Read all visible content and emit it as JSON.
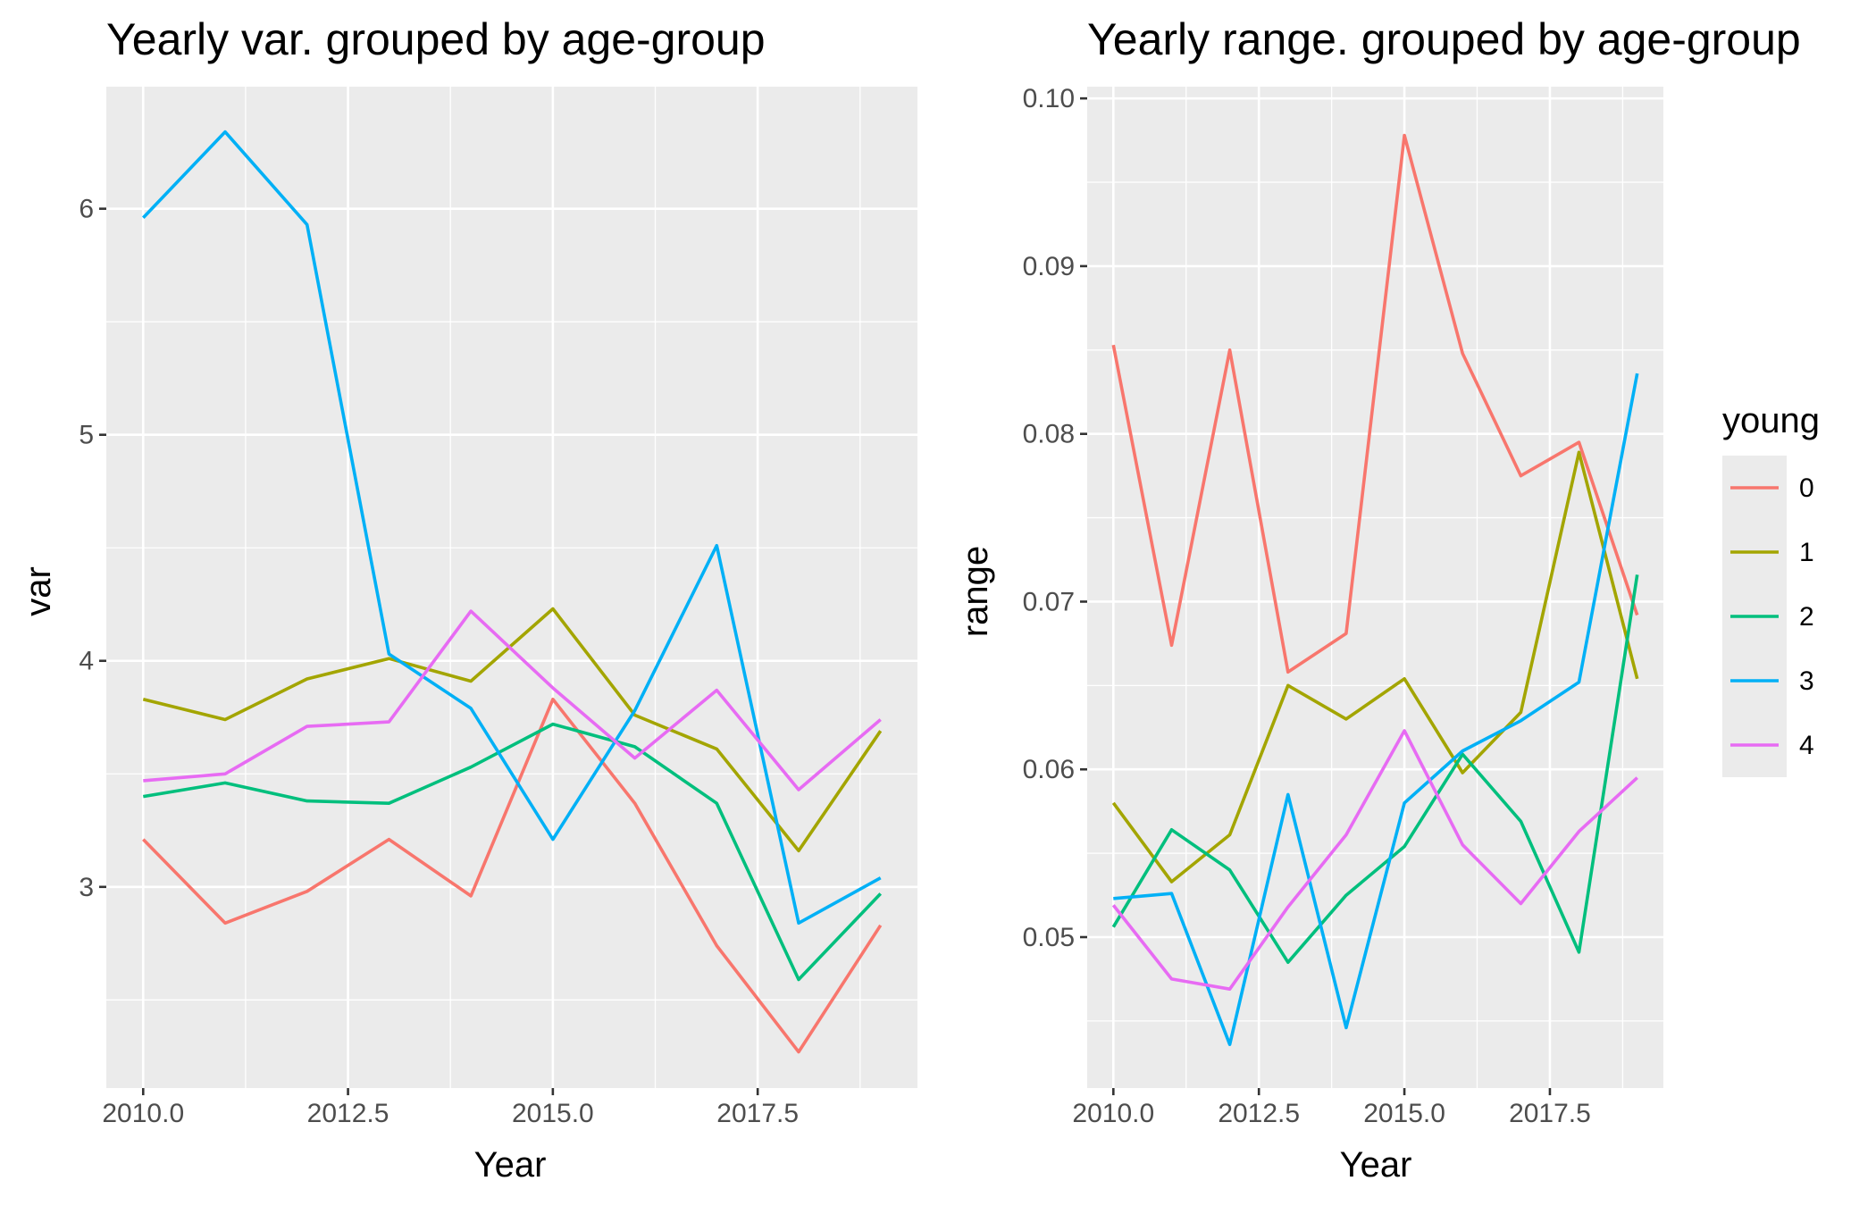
{
  "chart_data": [
    {
      "type": "line",
      "title": "Yearly var. grouped by age-group",
      "xlabel": "Year",
      "ylabel": "var",
      "xlim": [
        2009.55,
        2019.45
      ],
      "ylim": [
        2.11,
        6.54
      ],
      "x_major_ticks": [
        2010.0,
        2012.5,
        2015.0,
        2017.5
      ],
      "x_tick_labels": [
        "2010.0",
        "2012.5",
        "2015.0",
        "2017.5"
      ],
      "x_minor_ticks": [
        2011.25,
        2013.75,
        2016.25,
        2018.75
      ],
      "y_major_ticks": [
        3,
        4,
        5,
        6
      ],
      "y_tick_labels": [
        "3",
        "4",
        "5",
        "6"
      ],
      "y_minor_ticks": [
        2.5,
        3.5,
        4.5,
        5.5
      ],
      "x": [
        2010,
        2011,
        2012,
        2013,
        2014,
        2015,
        2016,
        2017,
        2018,
        2019
      ],
      "series": [
        {
          "name": "0",
          "values": [
            3.21,
            2.84,
            2.98,
            3.21,
            2.96,
            3.83,
            3.37,
            2.74,
            2.27,
            2.83
          ]
        },
        {
          "name": "1",
          "values": [
            3.83,
            3.74,
            3.92,
            4.01,
            3.91,
            4.23,
            3.76,
            3.61,
            3.16,
            3.69
          ]
        },
        {
          "name": "2",
          "values": [
            3.4,
            3.46,
            3.38,
            3.37,
            3.53,
            3.72,
            3.62,
            3.37,
            2.59,
            2.97
          ]
        },
        {
          "name": "3",
          "values": [
            5.96,
            6.34,
            5.93,
            4.03,
            3.79,
            3.21,
            3.78,
            4.51,
            2.84,
            3.04
          ]
        },
        {
          "name": "4",
          "values": [
            3.47,
            3.5,
            3.71,
            3.73,
            4.22,
            3.88,
            3.57,
            3.87,
            3.43,
            3.74
          ]
        }
      ]
    },
    {
      "type": "line",
      "title": "Yearly range. grouped by age-group",
      "xlabel": "Year",
      "ylabel": "range",
      "xlim": [
        2009.55,
        2019.45
      ],
      "ylim": [
        0.041,
        0.1007
      ],
      "x_major_ticks": [
        2010.0,
        2012.5,
        2015.0,
        2017.5
      ],
      "x_tick_labels": [
        "2010.0",
        "2012.5",
        "2015.0",
        "2017.5"
      ],
      "x_minor_ticks": [
        2011.25,
        2013.75,
        2016.25,
        2018.75
      ],
      "y_major_ticks": [
        0.05,
        0.06,
        0.07,
        0.08,
        0.09,
        0.1
      ],
      "y_tick_labels": [
        "0.05",
        "0.06",
        "0.07",
        "0.08",
        "0.09",
        "0.10"
      ],
      "y_minor_ticks": [
        0.045,
        0.055,
        0.065,
        0.075,
        0.085,
        0.095
      ],
      "x": [
        2010,
        2011,
        2012,
        2013,
        2014,
        2015,
        2016,
        2017,
        2018,
        2019
      ],
      "series": [
        {
          "name": "0",
          "values": [
            0.0853,
            0.0674,
            0.085,
            0.0658,
            0.0681,
            0.0978,
            0.0848,
            0.0775,
            0.0795,
            0.0692
          ]
        },
        {
          "name": "1",
          "values": [
            0.058,
            0.0533,
            0.0561,
            0.065,
            0.063,
            0.0654,
            0.0598,
            0.0634,
            0.0789,
            0.0654
          ]
        },
        {
          "name": "2",
          "values": [
            0.0506,
            0.0564,
            0.054,
            0.0485,
            0.0525,
            0.0554,
            0.0609,
            0.0569,
            0.0491,
            0.0716
          ]
        },
        {
          "name": "3",
          "values": [
            0.0523,
            0.0526,
            0.0436,
            0.0585,
            0.0446,
            0.058,
            0.0611,
            0.0629,
            0.0652,
            0.0836
          ]
        },
        {
          "name": "4",
          "values": [
            0.0519,
            0.0475,
            0.0469,
            0.0518,
            0.0561,
            0.0623,
            0.0555,
            0.052,
            0.0563,
            0.0595
          ]
        }
      ]
    }
  ],
  "legend": {
    "title": "young",
    "entries": [
      {
        "label": "0",
        "color": "#F8766D"
      },
      {
        "label": "1",
        "color": "#A3A500"
      },
      {
        "label": "2",
        "color": "#00BF7D"
      },
      {
        "label": "3",
        "color": "#00B0F6"
      },
      {
        "label": "4",
        "color": "#E76BF3"
      }
    ]
  },
  "colors": {
    "panel_background": "#ebebeb",
    "gridline": "#ffffff",
    "tick_label": "#4d4d4d"
  }
}
